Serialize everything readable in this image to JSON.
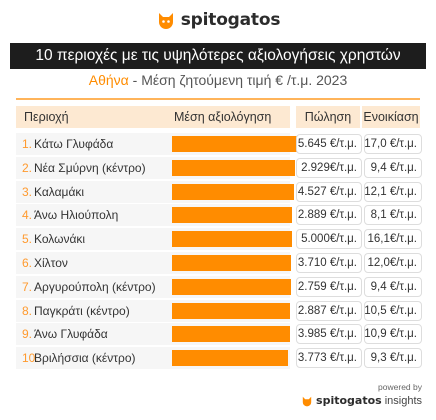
{
  "brand": {
    "name": "spitogatos",
    "accent": "#ff8c00",
    "icon": "cat-logo-icon"
  },
  "title": "10 περιοχές με τις υψηλότερες αξιολογήσεις χρηστών",
  "subtitle": {
    "city": "Αθήνα",
    "rest": " - Μέση ζητούμενη τιμή € /τ.μ. 2023"
  },
  "headers": {
    "area": "Περιοχή",
    "avg": "Μέση αξιολόγηση",
    "sale": "Πώληση",
    "rent": "Ενοικίαση"
  },
  "chart_data": {
    "type": "bar",
    "title": "10 περιοχές με τις υψηλότερες αξιολογήσεις χρηστών",
    "rows": [
      {
        "rank": "1.",
        "area": "Κάτω Γλυφάδα",
        "rating": 0.98,
        "sale": "5.645 €/τ.μ.",
        "rent": "17,0 €/τ.μ."
      },
      {
        "rank": "2.",
        "area": "Νέα Σμύρνη (κέντρο)",
        "rating": 0.96,
        "sale": "2.929€/τ.μ.",
        "rent": "9,4 €/τ.μ."
      },
      {
        "rank": "3.",
        "area": "Καλαμάκι",
        "rating": 0.95,
        "sale": "4.527 €/τ.μ.",
        "rent": "12,1 €/τ.μ."
      },
      {
        "rank": "4.",
        "area": "Άνω Ηλιούπολη",
        "rating": 0.94,
        "sale": "2.889 €/τ.μ.",
        "rent": "8,1 €/τ.μ."
      },
      {
        "rank": "5.",
        "area": "Κολωνάκι",
        "rating": 0.94,
        "sale": "5.000€/τ.μ.",
        "rent": "16,1€/τ.μ."
      },
      {
        "rank": "6.",
        "area": "Χίλτον",
        "rating": 0.93,
        "sale": "3.710 €/τ.μ.",
        "rent": "12,0€/τ.μ."
      },
      {
        "rank": "7.",
        "area": "Αργυρούπολη (κέντρο)",
        "rating": 0.93,
        "sale": "2.759 €/τ.μ.",
        "rent": "9,4 €/τ.μ."
      },
      {
        "rank": "8.",
        "area": "Παγκράτι (κέντρο)",
        "rating": 0.92,
        "sale": "2.887 €/τ.μ.",
        "rent": "10,5 €/τ.μ."
      },
      {
        "rank": "9.",
        "area": "Άνω Γλυφάδα",
        "rating": 0.92,
        "sale": "3.985 €/τ.μ.",
        "rent": "10,9 €/τ.μ."
      },
      {
        "rank": "10.",
        "area": "Βριλήσσια (κέντρο)",
        "rating": 0.91,
        "sale": "3.773 €/τ.μ.",
        "rent": "9,3 €/τ.μ."
      }
    ],
    "rating_range": [
      0,
      1
    ],
    "grid": false
  },
  "powered": {
    "label": "powered by",
    "brand": "spitogatos",
    "suffix": "insights"
  }
}
